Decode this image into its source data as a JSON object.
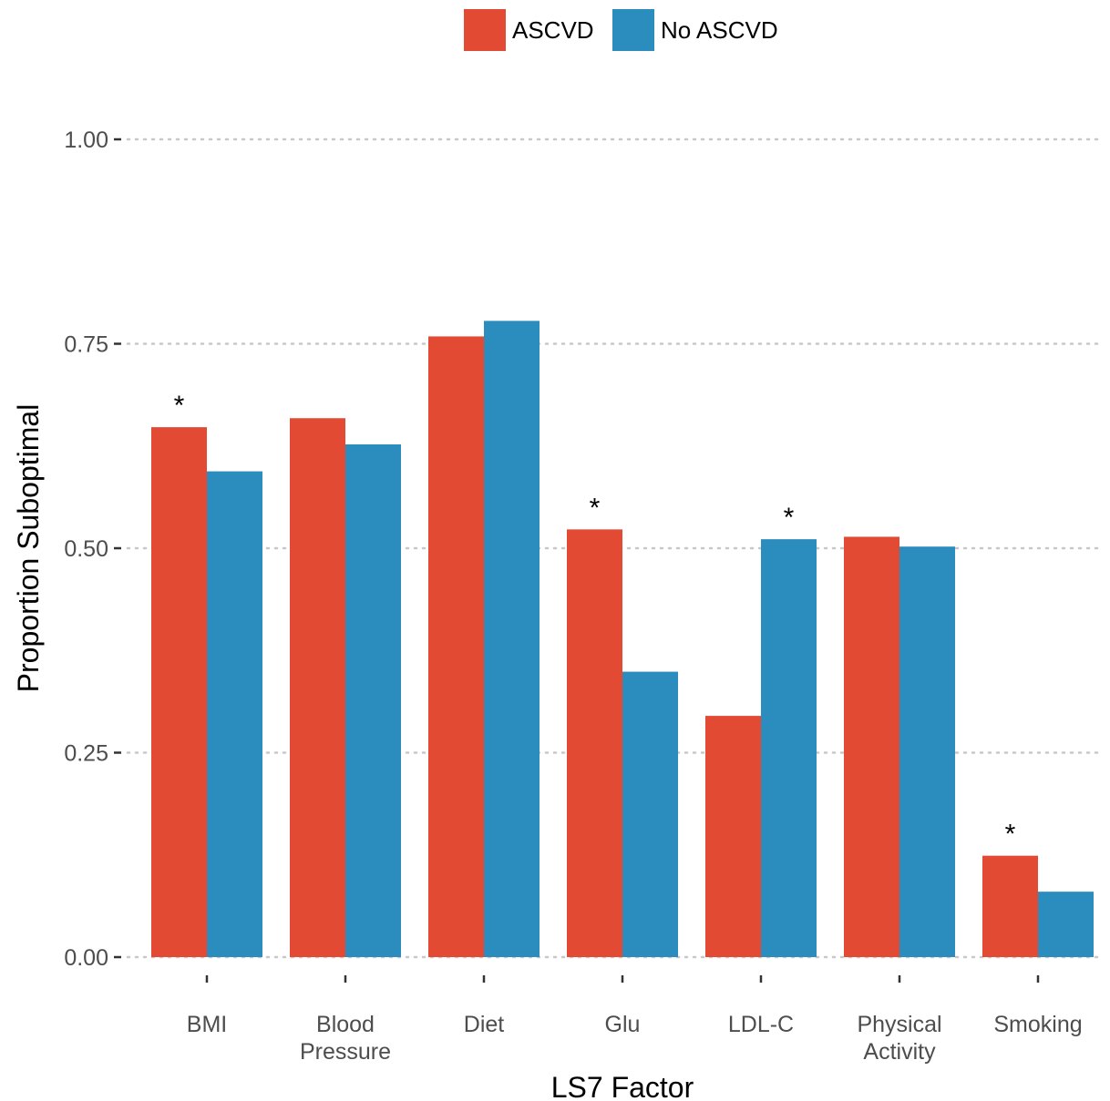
{
  "chart_data": {
    "type": "bar",
    "title": "",
    "xlabel": "LS7 Factor",
    "ylabel": "Proportion Suboptimal",
    "ylim": [
      0,
      1.0
    ],
    "yticks": [
      "0.00",
      "0.25",
      "0.50",
      "0.75",
      "1.00"
    ],
    "ytick_values": [
      0,
      0.25,
      0.5,
      0.75,
      1.0
    ],
    "grid": "horizontal dotted",
    "legend_position": "top",
    "categories": [
      [
        "BMI"
      ],
      [
        "Blood",
        "Pressure"
      ],
      [
        "Diet"
      ],
      [
        "Glu"
      ],
      [
        "LDL-C"
      ],
      [
        "Physical",
        "Activity"
      ],
      [
        "Smoking"
      ]
    ],
    "series": [
      {
        "name": "ASCVD",
        "color": "#e24a33",
        "values": [
          0.648,
          0.659,
          0.759,
          0.523,
          0.295,
          0.514,
          0.124
        ],
        "significant": [
          "*",
          "",
          "",
          "*",
          "",
          "",
          "*"
        ]
      },
      {
        "name": "No ASCVD",
        "color": "#2b8cbe",
        "values": [
          0.594,
          0.627,
          0.778,
          0.349,
          0.511,
          0.502,
          0.08
        ],
        "significant": [
          "",
          "",
          "",
          "",
          "*",
          "",
          ""
        ]
      }
    ]
  }
}
